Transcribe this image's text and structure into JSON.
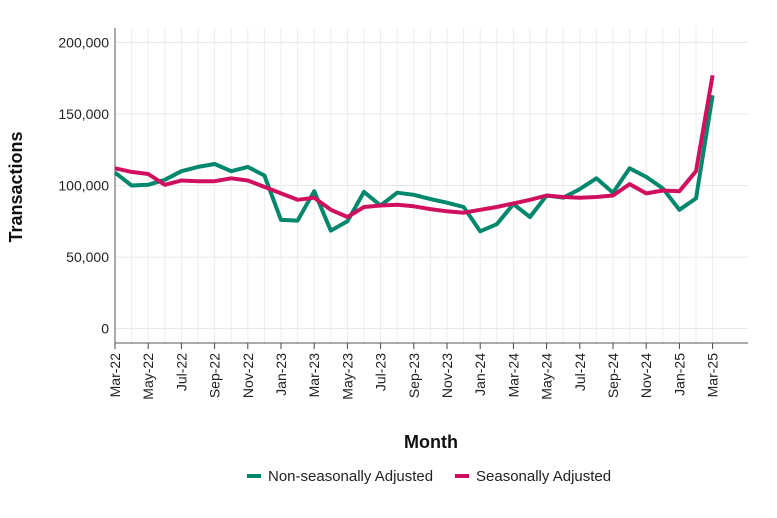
{
  "chart_data": {
    "type": "line",
    "title": "",
    "xlabel": "Month",
    "ylabel": "Transactions",
    "ylim": [
      -10000,
      210000
    ],
    "yticks": [
      0,
      50000,
      100000,
      150000,
      200000
    ],
    "ytick_labels": [
      "0",
      "50,000",
      "100,000",
      "150,000",
      "200,000"
    ],
    "grid": true,
    "legend_position": "bottom",
    "x_tick_labels": [
      "Mar-22",
      "May-22",
      "Jul-22",
      "Sep-22",
      "Nov-22",
      "Jan-23",
      "Mar-23",
      "May-23",
      "Jul-23",
      "Sep-23",
      "Nov-23",
      "Jan-24",
      "Mar-24",
      "May-24",
      "Jul-24",
      "Sep-24",
      "Nov-24",
      "Jan-25",
      "Mar-25"
    ],
    "x": [
      "Mar-22",
      "Apr-22",
      "May-22",
      "Jun-22",
      "Jul-22",
      "Aug-22",
      "Sep-22",
      "Oct-22",
      "Nov-22",
      "Dec-22",
      "Jan-23",
      "Feb-23",
      "Mar-23",
      "Apr-23",
      "May-23",
      "Jun-23",
      "Jul-23",
      "Aug-23",
      "Sep-23",
      "Oct-23",
      "Nov-23",
      "Dec-23",
      "Jan-24",
      "Feb-24",
      "Mar-24",
      "Apr-24",
      "May-24",
      "Jun-24",
      "Jul-24",
      "Aug-24",
      "Sep-24",
      "Oct-24",
      "Nov-24",
      "Dec-24",
      "Jan-25",
      "Feb-25",
      "Mar-25"
    ],
    "series": [
      {
        "name": "Non-seasonally Adjusted",
        "color": "#00876c",
        "values": [
          109000,
          100000,
          100500,
          104000,
          110000,
          113000,
          115000,
          110000,
          113000,
          107000,
          76000,
          75500,
          96000,
          68500,
          75000,
          95500,
          86000,
          95000,
          93500,
          90500,
          88000,
          85000,
          68000,
          73000,
          87000,
          78000,
          93000,
          91500,
          97500,
          105000,
          95000,
          112000,
          106000,
          98000,
          83000,
          91000,
          163000
        ]
      },
      {
        "name": "Seasonally Adjusted",
        "color": "#d0105f",
        "values": [
          112000,
          109500,
          108000,
          100500,
          103500,
          103000,
          103000,
          105000,
          103500,
          99000,
          94500,
          90000,
          91500,
          83000,
          78000,
          85000,
          86000,
          86500,
          85500,
          83500,
          82000,
          81000,
          83000,
          85000,
          87500,
          90000,
          93000,
          92000,
          91500,
          92000,
          93000,
          101000,
          94500,
          96500,
          96000,
          110000,
          177000
        ]
      }
    ]
  }
}
